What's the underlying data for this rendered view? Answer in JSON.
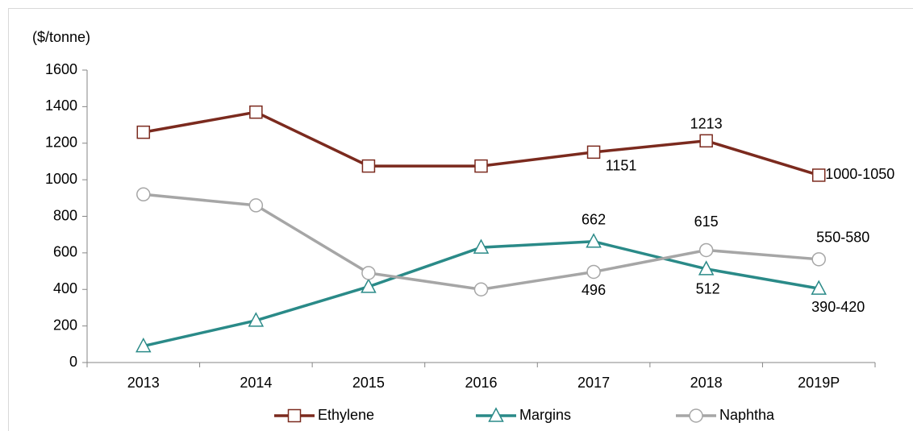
{
  "chart_data": {
    "type": "line",
    "y_label": "($/tonne)",
    "categories": [
      "2013",
      "2014",
      "2015",
      "2016",
      "2017",
      "2018",
      "2019P"
    ],
    "series": [
      {
        "name": "Ethylene",
        "color": "#7b2a1e",
        "marker": "square",
        "values": [
          1260,
          1370,
          1075,
          1075,
          1151,
          1213,
          1025
        ],
        "value_labels": [
          null,
          null,
          null,
          null,
          "1151",
          "1213",
          "1000-1050"
        ]
      },
      {
        "name": "Margins",
        "color": "#2a8a88",
        "marker": "triangle",
        "values": [
          90,
          230,
          415,
          630,
          662,
          512,
          405
        ],
        "value_labels": [
          null,
          null,
          null,
          null,
          "662",
          "512",
          "390-420"
        ]
      },
      {
        "name": "Naphtha",
        "color": "#a6a6a6",
        "marker": "circle",
        "values": [
          920,
          860,
          490,
          400,
          496,
          615,
          565
        ],
        "value_labels": [
          null,
          null,
          null,
          null,
          "496",
          "615",
          "550-580"
        ]
      }
    ],
    "ylim": [
      0,
      1600
    ],
    "yticks": [
      0,
      200,
      400,
      600,
      800,
      1000,
      1200,
      1400,
      1600
    ],
    "grid": false,
    "legend": "bottom"
  }
}
